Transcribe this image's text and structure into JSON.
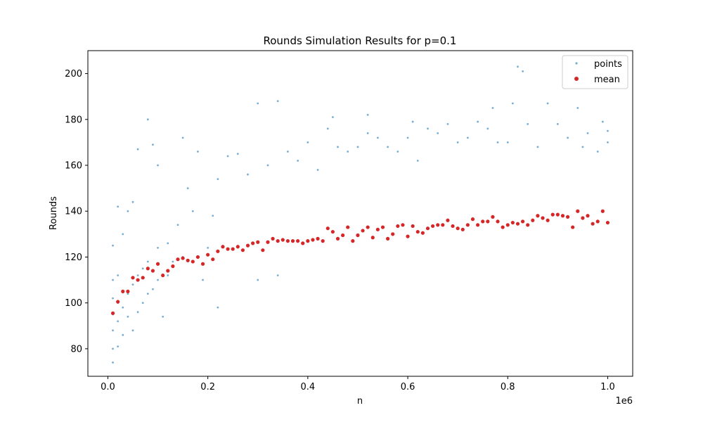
{
  "chart_data": {
    "type": "scatter",
    "title": "Rounds Simulation Results for p=0.1",
    "xlabel": "n",
    "ylabel": "Rounds",
    "x_offset_label": "1e6",
    "xlim": [
      -0.04,
      1.05
    ],
    "ylim": [
      68,
      210
    ],
    "x_ticks": [
      0.0,
      0.2,
      0.4,
      0.6,
      0.8,
      1.0
    ],
    "x_tick_labels": [
      "0.0",
      "0.2",
      "0.4",
      "0.6",
      "0.8",
      "1.0"
    ],
    "y_ticks": [
      80,
      100,
      120,
      140,
      160,
      180,
      200
    ],
    "y_tick_labels": [
      "80",
      "100",
      "120",
      "140",
      "160",
      "180",
      "200"
    ],
    "grid": false,
    "legend": "top-right",
    "points_color": "#1f77b4",
    "mean_color": "#d62728",
    "series": [
      {
        "name": "points",
        "x": [
          0.01,
          0.01,
          0.01,
          0.01,
          0.01,
          0.01,
          0.01,
          0.02,
          0.02,
          0.02,
          0.02,
          0.02,
          0.03,
          0.03,
          0.03,
          0.03,
          0.04,
          0.04,
          0.04,
          0.05,
          0.05,
          0.05,
          0.06,
          0.06,
          0.06,
          0.07,
          0.07,
          0.08,
          0.08,
          0.08,
          0.09,
          0.09,
          0.1,
          0.1,
          0.1,
          0.11,
          0.12,
          0.12,
          0.13,
          0.14,
          0.15,
          0.15,
          0.16,
          0.17,
          0.18,
          0.19,
          0.2,
          0.21,
          0.22,
          0.22,
          0.24,
          0.26,
          0.28,
          0.3,
          0.3,
          0.32,
          0.34,
          0.34,
          0.36,
          0.38,
          0.4,
          0.42,
          0.44,
          0.45,
          0.46,
          0.48,
          0.5,
          0.52,
          0.52,
          0.54,
          0.56,
          0.58,
          0.6,
          0.61,
          0.62,
          0.64,
          0.66,
          0.68,
          0.7,
          0.72,
          0.74,
          0.76,
          0.77,
          0.78,
          0.8,
          0.81,
          0.82,
          0.83,
          0.84,
          0.86,
          0.88,
          0.9,
          0.92,
          0.94,
          0.95,
          0.96,
          0.98,
          0.99,
          1.0,
          1.0
        ],
        "y": [
          74,
          80,
          88,
          95,
          102,
          110,
          125,
          81,
          92,
          100,
          112,
          142,
          86,
          98,
          105,
          130,
          94,
          104,
          140,
          88,
          108,
          144,
          96,
          112,
          167,
          100,
          115,
          104,
          118,
          180,
          106,
          169,
          110,
          124,
          160,
          94,
          112,
          126,
          118,
          134,
          120,
          172,
          150,
          140,
          166,
          110,
          124,
          138,
          98,
          154,
          164,
          165,
          156,
          110,
          187,
          160,
          112,
          188,
          166,
          162,
          170,
          158,
          176,
          181,
          168,
          166,
          168,
          182,
          174,
          172,
          168,
          166,
          172,
          179,
          162,
          176,
          174,
          178,
          170,
          172,
          179,
          176,
          185,
          170,
          170,
          187,
          203,
          201,
          178,
          168,
          187,
          178,
          172,
          185,
          168,
          174,
          166,
          179,
          175,
          170
        ]
      },
      {
        "name": "mean",
        "x": [
          0.01,
          0.02,
          0.03,
          0.04,
          0.05,
          0.06,
          0.07,
          0.08,
          0.09,
          0.1,
          0.11,
          0.12,
          0.13,
          0.14,
          0.15,
          0.16,
          0.17,
          0.18,
          0.19,
          0.2,
          0.21,
          0.22,
          0.23,
          0.24,
          0.25,
          0.26,
          0.27,
          0.28,
          0.29,
          0.3,
          0.31,
          0.32,
          0.33,
          0.34,
          0.35,
          0.36,
          0.37,
          0.38,
          0.39,
          0.4,
          0.41,
          0.42,
          0.43,
          0.44,
          0.45,
          0.46,
          0.47,
          0.48,
          0.49,
          0.5,
          0.51,
          0.52,
          0.53,
          0.54,
          0.55,
          0.56,
          0.57,
          0.58,
          0.59,
          0.6,
          0.61,
          0.62,
          0.63,
          0.64,
          0.65,
          0.66,
          0.67,
          0.68,
          0.69,
          0.7,
          0.71,
          0.72,
          0.73,
          0.74,
          0.75,
          0.76,
          0.77,
          0.78,
          0.79,
          0.8,
          0.81,
          0.82,
          0.83,
          0.84,
          0.85,
          0.86,
          0.87,
          0.88,
          0.89,
          0.9,
          0.91,
          0.92,
          0.93,
          0.94,
          0.95,
          0.96,
          0.97,
          0.98,
          0.99,
          1.0
        ],
        "y": [
          95.5,
          100.5,
          105,
          105,
          111,
          110,
          111,
          115,
          114,
          117,
          112,
          114,
          116,
          119,
          119.5,
          118.5,
          118,
          120,
          117,
          121,
          119,
          122.5,
          124.5,
          123.5,
          123.5,
          124.5,
          123,
          125,
          126,
          126.5,
          123,
          126.5,
          128,
          127,
          127.5,
          127,
          127,
          127,
          126,
          127,
          127.5,
          128,
          127,
          132.5,
          131,
          128,
          129.5,
          133,
          127,
          129.5,
          131.5,
          133,
          128.5,
          132,
          133,
          128,
          130,
          133.5,
          134,
          129,
          133.5,
          131,
          130.5,
          132.5,
          133.5,
          134,
          134,
          136,
          133.5,
          132.5,
          132,
          134,
          136.5,
          134,
          135.5,
          135.5,
          137.5,
          135.5,
          133,
          134,
          135,
          134.5,
          135.5,
          134,
          136,
          138,
          137,
          136,
          138.5,
          138.5,
          138,
          137.5,
          133,
          140,
          137,
          138,
          134.5,
          135.5,
          140,
          135
        ]
      }
    ]
  }
}
